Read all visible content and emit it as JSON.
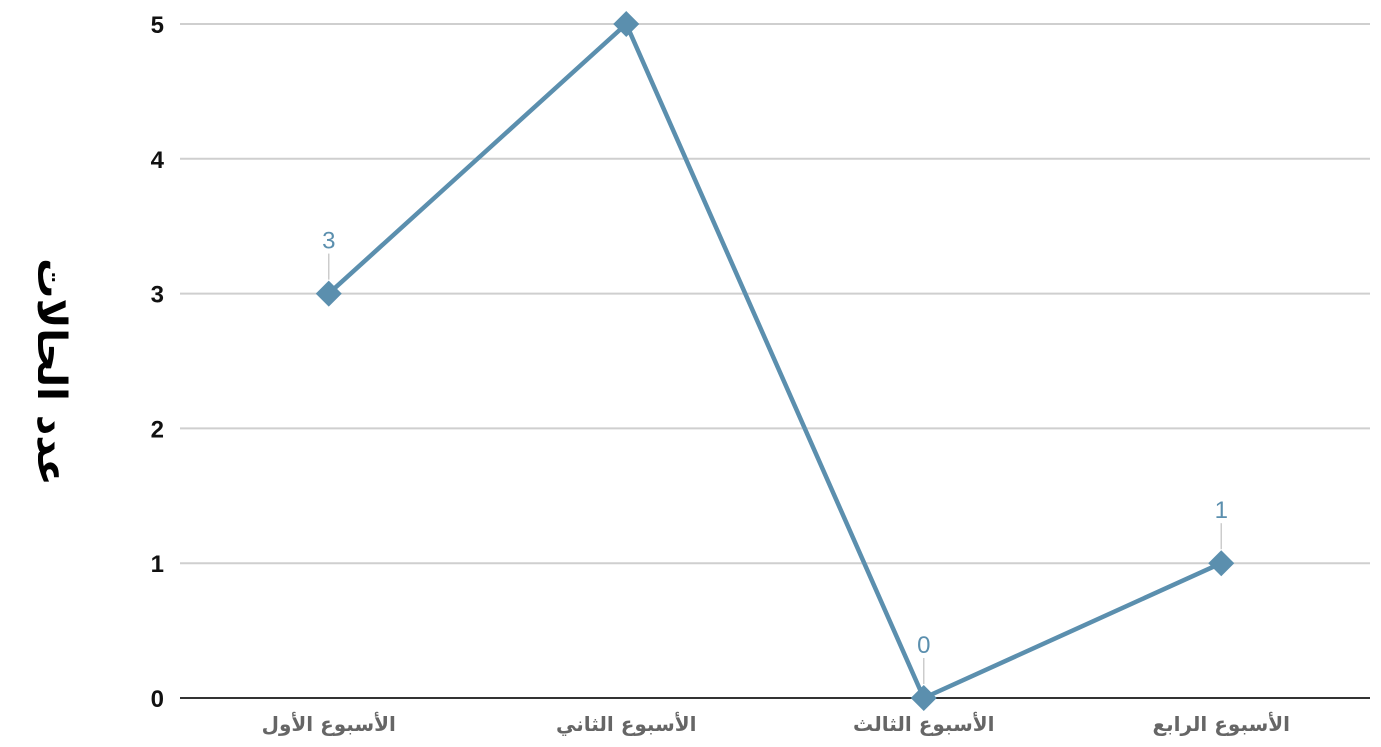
{
  "chart_data": {
    "type": "line",
    "title": "",
    "xlabel": "",
    "ylabel": "عدد الحالات",
    "categories": [
      "الأسبوع الأول",
      "الأسبوع الثاني",
      "الأسبوع الثالث",
      "الأسبوع الرابع"
    ],
    "series": [
      {
        "values": [
          3,
          5,
          0,
          1
        ],
        "color": "#5b8fae",
        "marker": "diamond"
      }
    ],
    "data_labels": [
      "3",
      "",
      "0",
      "1"
    ],
    "ylim": [
      0,
      5
    ],
    "yticks": [
      "0",
      "1",
      "2",
      "3",
      "4",
      "5"
    ],
    "grid": true,
    "legend": "none"
  }
}
